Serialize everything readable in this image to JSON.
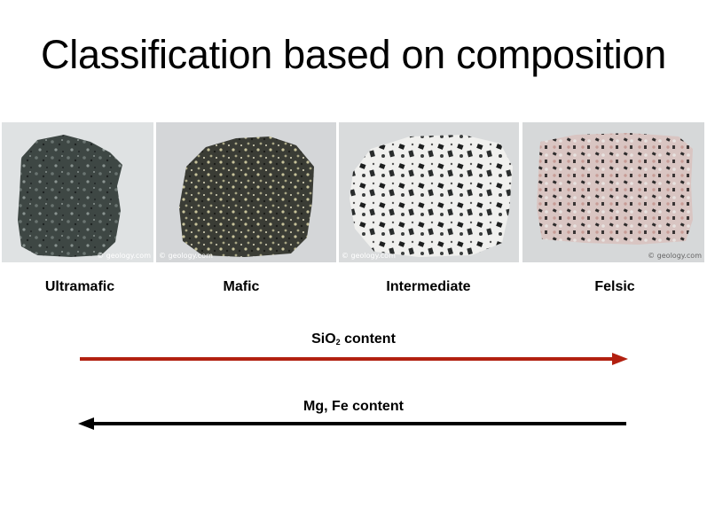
{
  "title": "Classification based on composition",
  "rocks": [
    {
      "label": "Ultramafic",
      "credit": "© geology.com"
    },
    {
      "label": "Mafic",
      "credit": "© geology.com"
    },
    {
      "label": "Intermediate",
      "credit": "© geology.com"
    },
    {
      "label": "Felsic",
      "credit": "© geology.com"
    }
  ],
  "arrows": {
    "sio2": {
      "label_main": "SiO",
      "label_sub": "2",
      "label_rest": " content",
      "direction": "right",
      "color": "#b22010"
    },
    "mgfe": {
      "label": "Mg, Fe content",
      "direction": "left",
      "color": "#000000"
    }
  }
}
